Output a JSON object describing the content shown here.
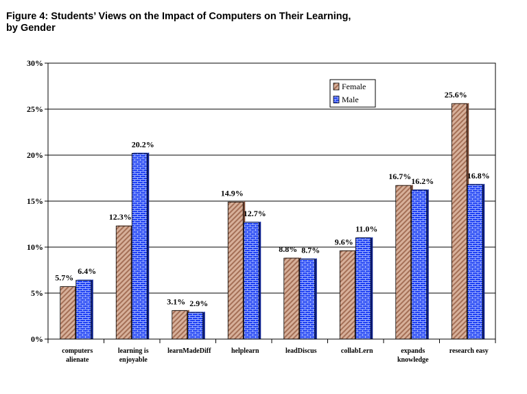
{
  "title_line1": "Figure 4: Students’ Views on the Impact of Computers on Their Learning,",
  "title_line2": "by Gender",
  "chart_data": {
    "type": "bar",
    "title": "Figure 4: Students’ Views on the Impact of Computers on Their Learning, by Gender",
    "xlabel": "",
    "ylabel": "",
    "ylim": [
      0,
      30
    ],
    "yticks": [
      0,
      5,
      10,
      15,
      20,
      25,
      30
    ],
    "ytick_format": "percent",
    "grid": true,
    "legend_position": "top-right",
    "categories": [
      [
        "computers",
        "alienate"
      ],
      [
        "learning is",
        "enjoyable"
      ],
      [
        "learnMadeDiff"
      ],
      [
        "helplearn"
      ],
      [
        "leadDiscus"
      ],
      [
        "collabLern"
      ],
      [
        "expands",
        "knowledge"
      ],
      [
        "research easy"
      ]
    ],
    "series": [
      {
        "name": "Female",
        "color": "#c99a82",
        "pattern": "diagonal-hatch",
        "values": [
          5.7,
          12.3,
          3.1,
          14.9,
          8.8,
          9.6,
          16.7,
          25.6
        ]
      },
      {
        "name": "Male",
        "color": "#1a3cf0",
        "pattern": "brick",
        "values": [
          6.4,
          20.2,
          2.9,
          12.7,
          8.7,
          11.0,
          16.2,
          16.8
        ]
      }
    ]
  }
}
